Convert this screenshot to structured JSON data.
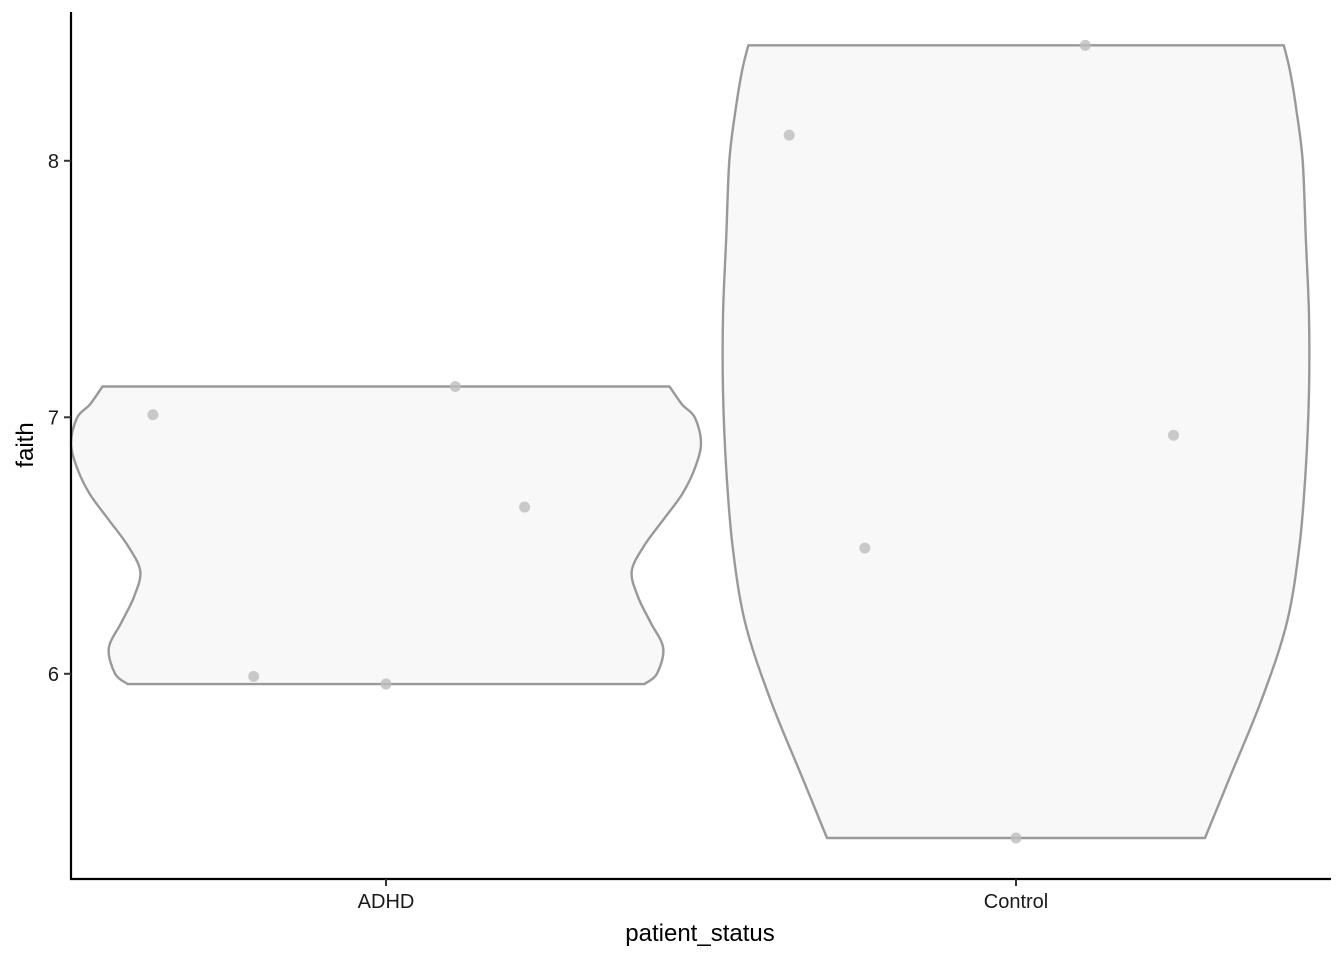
{
  "chart_data": {
    "type": "violin",
    "xlabel": "patient_status",
    "ylabel": "faith",
    "categories": [
      "ADHD",
      "Control"
    ],
    "y_ticks": [
      6,
      7,
      8
    ],
    "ylim": [
      5.2,
      8.58
    ],
    "grid": false,
    "legend": "none",
    "colors": {
      "fill": "#f8f8f8",
      "outline": "#999999",
      "points": "#bdbdbd",
      "axis": "#000000"
    },
    "groups": [
      {
        "category": "ADHD",
        "points": [
          {
            "jitter": -0.37,
            "y": 7.01
          },
          {
            "jitter": -0.21,
            "y": 5.99
          },
          {
            "jitter": 0.0,
            "y": 5.96
          },
          {
            "jitter": 0.11,
            "y": 7.12
          },
          {
            "jitter": 0.22,
            "y": 6.65
          }
        ],
        "density": [
          {
            "y": 5.96,
            "w": 0.41
          },
          {
            "y": 6.0,
            "w": 0.43
          },
          {
            "y": 6.1,
            "w": 0.44
          },
          {
            "y": 6.2,
            "w": 0.42
          },
          {
            "y": 6.3,
            "w": 0.4
          },
          {
            "y": 6.4,
            "w": 0.39
          },
          {
            "y": 6.5,
            "w": 0.41
          },
          {
            "y": 6.6,
            "w": 0.44
          },
          {
            "y": 6.7,
            "w": 0.47
          },
          {
            "y": 6.8,
            "w": 0.49
          },
          {
            "y": 6.9,
            "w": 0.5
          },
          {
            "y": 7.0,
            "w": 0.49
          },
          {
            "y": 7.05,
            "w": 0.47
          },
          {
            "y": 7.12,
            "w": 0.45
          }
        ]
      },
      {
        "category": "Control",
        "points": [
          {
            "jitter": -0.36,
            "y": 8.1
          },
          {
            "jitter": -0.24,
            "y": 6.49
          },
          {
            "jitter": 0.0,
            "y": 5.36
          },
          {
            "jitter": 0.11,
            "y": 8.45
          },
          {
            "jitter": 0.25,
            "y": 6.93
          }
        ],
        "density": [
          {
            "y": 5.36,
            "w": 0.3
          },
          {
            "y": 5.6,
            "w": 0.34
          },
          {
            "y": 5.9,
            "w": 0.39
          },
          {
            "y": 6.2,
            "w": 0.43
          },
          {
            "y": 6.5,
            "w": 0.45
          },
          {
            "y": 6.8,
            "w": 0.46
          },
          {
            "y": 7.1,
            "w": 0.465
          },
          {
            "y": 7.4,
            "w": 0.465
          },
          {
            "y": 7.7,
            "w": 0.46
          },
          {
            "y": 8.0,
            "w": 0.455
          },
          {
            "y": 8.2,
            "w": 0.445
          },
          {
            "y": 8.35,
            "w": 0.435
          },
          {
            "y": 8.45,
            "w": 0.425
          }
        ]
      }
    ]
  }
}
